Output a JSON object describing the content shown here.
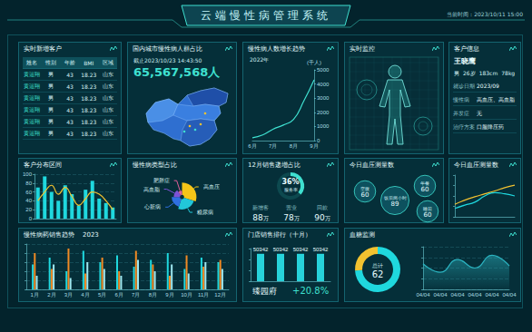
{
  "header": {
    "title": "云端慢性病管理系统",
    "time": "当前时间：2023/10/11 15:00"
  },
  "new_customers": {
    "title": "实时新增客户",
    "columns": [
      "姓名",
      "性别",
      "年龄",
      "BMI",
      "区域"
    ],
    "rows": [
      [
        "黄运翔",
        "男",
        "43",
        "18.23",
        "山东"
      ],
      [
        "黄运翔",
        "男",
        "43",
        "18.23",
        "山东"
      ],
      [
        "黄运翔",
        "男",
        "43",
        "18.23",
        "山东"
      ],
      [
        "黄运翔",
        "男",
        "43",
        "18.23",
        "山东"
      ],
      [
        "黄运翔",
        "男",
        "43",
        "18.23",
        "山东"
      ],
      [
        "黄运翔",
        "男",
        "43",
        "18.23",
        "山东"
      ]
    ]
  },
  "population": {
    "title": "国内城市慢性病人群占比",
    "as_of": "截止2023/10/23 14:43:50",
    "total": "65,567,568人"
  },
  "monitor": {
    "title": "实时监控"
  },
  "customer_info": {
    "title": "客户信息",
    "name": "王晓鹰",
    "profile": [
      "男",
      "26岁",
      "183cm",
      "78kg"
    ],
    "fields": [
      {
        "label": "就诊日期",
        "value": "2023/09"
      },
      {
        "label": "慢性病",
        "value": "高血压、高血脂"
      },
      {
        "label": "并发症",
        "value": "无"
      },
      {
        "label": "治疗方案",
        "value": "口服降压药"
      }
    ]
  },
  "sales_ratio": {
    "title": "12月销售递增占比",
    "ring_value": 36,
    "ring_max": 100,
    "ring_label": "36%",
    "ring_text": "服务率",
    "stats": [
      {
        "label": "新增客",
        "value": "88",
        "unit": "万"
      },
      {
        "label": "营业",
        "value": "78",
        "unit": "万"
      },
      {
        "label": "回款",
        "value": "90",
        "unit": "万"
      }
    ]
  },
  "bp_bubbles": {
    "title": "今日血压测量数",
    "bubbles": [
      {
        "label": "空腹",
        "value": 60
      },
      {
        "label": "午餐",
        "value": 60
      },
      {
        "label": "饭后两小时",
        "value": 89
      },
      {
        "label": "睡前",
        "value": 60
      }
    ]
  },
  "store_ranking": {
    "store": "臻园府",
    "change": "+20.8%"
  },
  "chart_data": [
    {
      "title": "慢性病人数增长趋势",
      "subtitle": "2022年",
      "y_label": "(千人)",
      "type": "line",
      "categories": [
        "6月",
        null,
        "7月",
        null,
        "8月",
        null,
        "9月"
      ],
      "values": [
        200,
        400,
        800,
        1100,
        1500,
        2800,
        4300
      ],
      "color": "#3fe0d0",
      "marker": "none",
      "line_style": "solid",
      "ylim": [
        0,
        5000
      ],
      "yticks": [
        0,
        1000,
        2000,
        3000,
        4000,
        5000
      ],
      "grid": false
    },
    {
      "title": "客户分布区间",
      "type": "bar",
      "categories": [
        null,
        null,
        null,
        null,
        null,
        null,
        null,
        null,
        null,
        null,
        null,
        null
      ],
      "series": [
        {
          "type": "bar",
          "color": "#1fd8de",
          "values": [
            70,
            95,
            60,
            40,
            75,
            55,
            30,
            65,
            85,
            45,
            35,
            25
          ]
        },
        {
          "type": "line",
          "color": "#f2c230",
          "marker": "none",
          "line_style": "solid",
          "values": [
            40,
            60,
            75,
            55,
            70,
            50,
            30,
            45,
            60,
            55,
            40,
            20
          ]
        }
      ],
      "ylim": [
        0,
        100
      ],
      "yticks": [
        0,
        20,
        40,
        60,
        80,
        100
      ],
      "grid": true,
      "tick_labels": "y"
    },
    {
      "title": "慢性病类型占比",
      "type": "pie",
      "categories": [
        "高血压",
        "糖尿病",
        "心脏病",
        "高血脂",
        "肥胖症"
      ],
      "values": [
        30,
        25,
        20,
        15,
        10
      ],
      "colors": [
        "#f5c518",
        "#22c7d9",
        "#2f6fe0",
        "#7b52d6",
        "#e0609a"
      ]
    },
    {
      "title": "今日血压测量数",
      "type": "line",
      "categories": [
        null,
        null,
        null,
        null,
        null,
        null,
        null
      ],
      "series": [
        {
          "color": "#f2c230",
          "marker": "none",
          "line_style": "solid",
          "values": [
            30,
            40,
            48,
            55,
            62,
            70,
            76
          ]
        },
        {
          "color": "#1fd8de",
          "marker": "none",
          "line_style": "solid",
          "values": [
            20,
            28,
            35,
            50,
            58,
            55,
            50
          ]
        }
      ],
      "ylim": [
        0,
        100
      ],
      "yticks": [
        0,
        25,
        50,
        75,
        100
      ],
      "grid": false,
      "tick_labels": false
    },
    {
      "title": "慢性病药销售趋势",
      "subtitle": "2023",
      "type": "bar",
      "categories": [
        "1月",
        "2月",
        "3月",
        "4月",
        "5月",
        "6月",
        "7月",
        "8月",
        "9月",
        "10月",
        "11月",
        "12月"
      ],
      "series": [
        {
          "color": "#1fd8de",
          "values": [
            55,
            70,
            40,
            85,
            60,
            75,
            50,
            65,
            80,
            45,
            70,
            60
          ]
        },
        {
          "color": "#f08a24",
          "values": [
            80,
            45,
            90,
            35,
            70,
            40,
            85,
            55,
            30,
            75,
            50,
            65
          ]
        },
        {
          "color": "#9fe8f0",
          "values": [
            30,
            55,
            25,
            60,
            45,
            30,
            65,
            40,
            55,
            35,
            60,
            45
          ]
        }
      ],
      "ylim": [
        0,
        100
      ],
      "yticks": [
        0,
        20,
        40,
        60,
        80,
        100
      ],
      "grid": true,
      "tick_labels": "x"
    },
    {
      "title": "门店销售排行（十月）",
      "type": "bar",
      "categories": [
        null,
        null,
        null,
        null
      ],
      "values": [
        50342,
        50342,
        50342,
        50342
      ],
      "color": "#27d3db",
      "data_labels": true,
      "ylim": [
        0,
        60000
      ],
      "yticks": [
        0,
        20000,
        40000,
        60000
      ],
      "grid": false,
      "tick_labels": false
    },
    {
      "title": "血糖监测",
      "type": "pie",
      "center_label": "总计",
      "center_value": 62,
      "values": [
        46,
        16
      ],
      "colors": [
        "#1fd8de",
        "#f2c230"
      ]
    },
    {
      "type": "area",
      "categories": [
        "04/04",
        "04/04",
        "04/04",
        "04/04",
        "04/04",
        "04/04"
      ],
      "values": [
        60,
        40,
        70,
        50,
        80,
        55
      ],
      "color": "#2bb3c0",
      "ylim": [
        0,
        100
      ],
      "yticks": [
        0,
        25,
        50,
        75,
        100
      ],
      "grid": true,
      "tick_labels": "x"
    }
  ]
}
